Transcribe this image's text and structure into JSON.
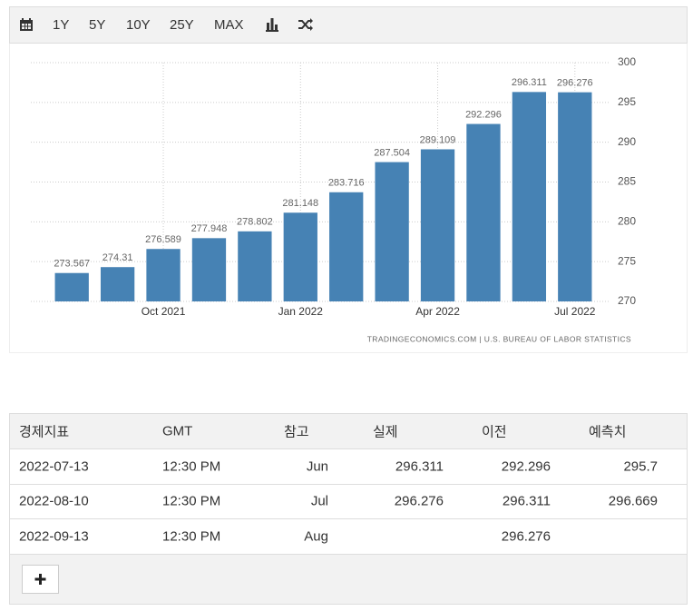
{
  "toolbar": {
    "buttons": [
      "1Y",
      "5Y",
      "10Y",
      "25Y",
      "MAX"
    ]
  },
  "chart_data": {
    "type": "bar",
    "categories": [
      null,
      null,
      "Oct 2021",
      null,
      null,
      "Jan 2022",
      null,
      null,
      "Apr 2022",
      null,
      null,
      "Jul 2022"
    ],
    "values": [
      273.567,
      274.31,
      276.589,
      277.948,
      278.802,
      281.148,
      283.716,
      287.504,
      289.109,
      292.296,
      296.311,
      296.276
    ],
    "color": "#4682b4",
    "ylim": [
      270,
      300
    ],
    "yticks": [
      270,
      275,
      280,
      285,
      290,
      295,
      300
    ],
    "grid": true,
    "y_axis_side": "right"
  },
  "source": "TRADINGECONOMICS.COM | U.S. BUREAU OF LABOR STATISTICS",
  "table": {
    "header": [
      "경제지표",
      "GMT",
      "참고",
      "실제",
      "이전",
      "예측치"
    ],
    "rows": [
      [
        "2022-07-13",
        "12:30 PM",
        "Jun",
        "296.311",
        "292.296",
        "295.7"
      ],
      [
        "2022-08-10",
        "12:30 PM",
        "Jul",
        "296.276",
        "296.311",
        "296.669"
      ],
      [
        "2022-09-13",
        "12:30 PM",
        "Aug",
        null,
        "296.276",
        null
      ]
    ]
  }
}
